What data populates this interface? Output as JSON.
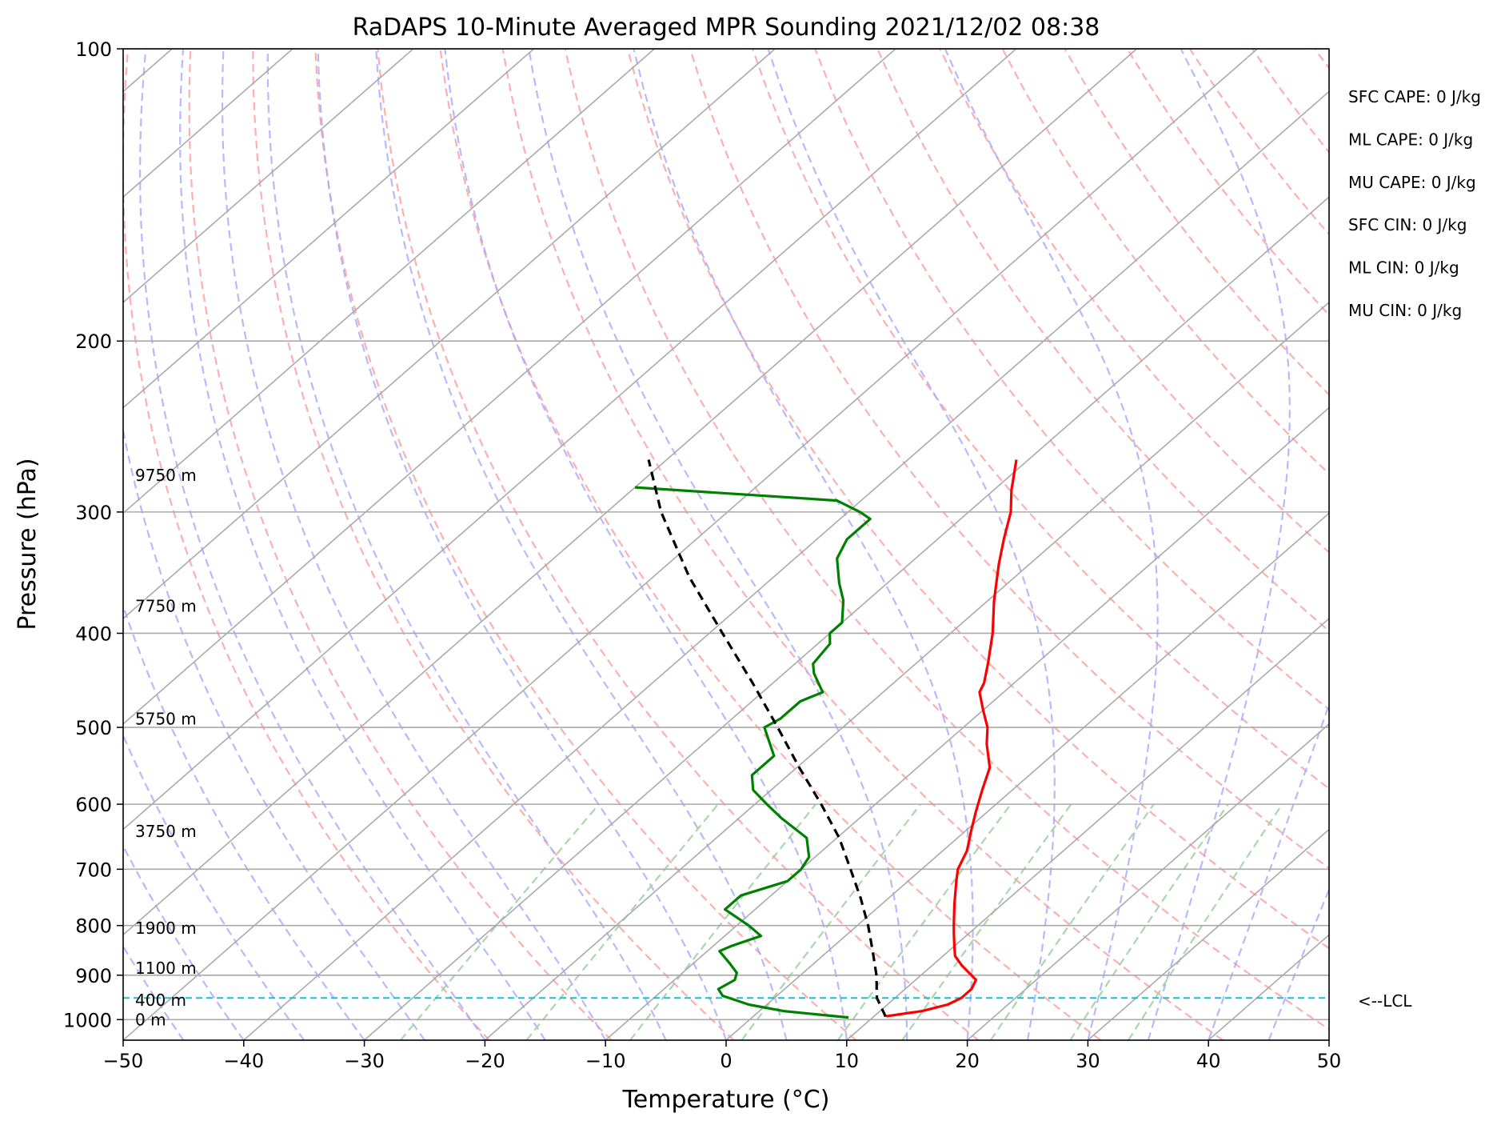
{
  "chart_data": {
    "type": "line",
    "title": "RaDAPS 10-Minute Averaged MPR Sounding 2021/12/02 08:38",
    "xlabel": "Temperature (°C)",
    "ylabel": "Pressure (hPa)",
    "xlim": [
      -50,
      50
    ],
    "ylim": [
      1050,
      100
    ],
    "y_scale": "log",
    "skew": "skew-T",
    "grid": true,
    "x_ticks": [
      "−50",
      "−40",
      "−30",
      "−20",
      "−10",
      "0",
      "10",
      "20",
      "30",
      "40",
      "50"
    ],
    "x_tick_values": [
      -50,
      -40,
      -30,
      -20,
      -10,
      0,
      10,
      20,
      30,
      40,
      50
    ],
    "y_ticks": [
      "100",
      "200",
      "300",
      "400",
      "500",
      "600",
      "700",
      "800",
      "900",
      "1000"
    ],
    "y_tick_values": [
      100,
      200,
      300,
      400,
      500,
      600,
      700,
      800,
      900,
      1000
    ],
    "series": [
      {
        "role": "temperature",
        "color": "#ff0000",
        "points": [
          {
            "p": 992,
            "t": 11.0
          },
          {
            "p": 980,
            "t": 13.5
          },
          {
            "p": 965,
            "t": 15.0
          },
          {
            "p": 950,
            "t": 15.5
          },
          {
            "p": 930,
            "t": 15.5
          },
          {
            "p": 910,
            "t": 15.0
          },
          {
            "p": 880,
            "t": 12.5
          },
          {
            "p": 860,
            "t": 11.0
          },
          {
            "p": 840,
            "t": 10.0
          },
          {
            "p": 820,
            "t": 9.0
          },
          {
            "p": 800,
            "t": 8.0
          },
          {
            "p": 760,
            "t": 6.0
          },
          {
            "p": 720,
            "t": 4.0
          },
          {
            "p": 700,
            "t": 3.0
          },
          {
            "p": 670,
            "t": 2.0
          },
          {
            "p": 640,
            "t": 0.5
          },
          {
            "p": 610,
            "t": -1.0
          },
          {
            "p": 580,
            "t": -2.5
          },
          {
            "p": 550,
            "t": -4.0
          },
          {
            "p": 520,
            "t": -6.5
          },
          {
            "p": 500,
            "t": -8.0
          },
          {
            "p": 480,
            "t": -10.0
          },
          {
            "p": 460,
            "t": -12.0
          },
          {
            "p": 450,
            "t": -12.5
          },
          {
            "p": 430,
            "t": -14.0
          },
          {
            "p": 400,
            "t": -16.5
          },
          {
            "p": 370,
            "t": -19.5
          },
          {
            "p": 340,
            "t": -22.5
          },
          {
            "p": 320,
            "t": -24.5
          },
          {
            "p": 300,
            "t": -26.5
          },
          {
            "p": 285,
            "t": -28.5
          },
          {
            "p": 265,
            "t": -31.0
          }
        ]
      },
      {
        "role": "dewpoint",
        "color": "#008000",
        "points": [
          {
            "p": 995,
            "t": 8.0
          },
          {
            "p": 990,
            "t": 6.0
          },
          {
            "p": 980,
            "t": 2.0
          },
          {
            "p": 965,
            "t": -1.5
          },
          {
            "p": 955,
            "t": -3.0
          },
          {
            "p": 945,
            "t": -4.5
          },
          {
            "p": 930,
            "t": -5.5
          },
          {
            "p": 910,
            "t": -5.0
          },
          {
            "p": 895,
            "t": -5.5
          },
          {
            "p": 875,
            "t": -7.0
          },
          {
            "p": 850,
            "t": -9.0
          },
          {
            "p": 840,
            "t": -8.5
          },
          {
            "p": 820,
            "t": -7.0
          },
          {
            "p": 800,
            "t": -9.0
          },
          {
            "p": 770,
            "t": -12.5
          },
          {
            "p": 745,
            "t": -12.5
          },
          {
            "p": 720,
            "t": -10.0
          },
          {
            "p": 700,
            "t": -10.0
          },
          {
            "p": 680,
            "t": -10.5
          },
          {
            "p": 650,
            "t": -12.5
          },
          {
            "p": 620,
            "t": -16.5
          },
          {
            "p": 600,
            "t": -19.0
          },
          {
            "p": 580,
            "t": -21.5
          },
          {
            "p": 560,
            "t": -23.0
          },
          {
            "p": 535,
            "t": -23.0
          },
          {
            "p": 500,
            "t": -26.5
          },
          {
            "p": 490,
            "t": -26.0
          },
          {
            "p": 470,
            "t": -26.0
          },
          {
            "p": 460,
            "t": -25.0
          },
          {
            "p": 440,
            "t": -27.5
          },
          {
            "p": 430,
            "t": -28.5
          },
          {
            "p": 410,
            "t": -29.0
          },
          {
            "p": 400,
            "t": -30.0
          },
          {
            "p": 390,
            "t": -30.0
          },
          {
            "p": 370,
            "t": -32.0
          },
          {
            "p": 355,
            "t": -34.0
          },
          {
            "p": 335,
            "t": -36.5
          },
          {
            "p": 320,
            "t": -37.5
          },
          {
            "p": 305,
            "t": -37.5
          },
          {
            "p": 300,
            "t": -39.0
          },
          {
            "p": 292,
            "t": -42.0
          },
          {
            "p": 283,
            "t": -60.0
          }
        ]
      },
      {
        "role": "parcel",
        "color": "#000000",
        "dashed": true,
        "points": [
          {
            "p": 993,
            "t": 11.0
          },
          {
            "p": 950,
            "t": 8.5
          },
          {
            "p": 900,
            "t": 6.3
          },
          {
            "p": 850,
            "t": 3.7
          },
          {
            "p": 800,
            "t": 0.9
          },
          {
            "p": 750,
            "t": -2.3
          },
          {
            "p": 700,
            "t": -5.9
          },
          {
            "p": 650,
            "t": -9.8
          },
          {
            "p": 600,
            "t": -14.5
          },
          {
            "p": 550,
            "t": -19.8
          },
          {
            "p": 500,
            "t": -25.4
          },
          {
            "p": 450,
            "t": -31.7
          },
          {
            "p": 400,
            "t": -38.9
          },
          {
            "p": 350,
            "t": -47.0
          },
          {
            "p": 300,
            "t": -55.5
          },
          {
            "p": 265,
            "t": -61.5
          }
        ]
      }
    ],
    "lcl_pressure": 950,
    "lcl_label": "<--LCL",
    "lcl_color": "#17becf",
    "height_labels": [
      {
        "p": 1000,
        "label": "0 m"
      },
      {
        "p": 955,
        "label": "400 m"
      },
      {
        "p": 885,
        "label": "1100 m"
      },
      {
        "p": 805,
        "label": "1900 m"
      },
      {
        "p": 640,
        "label": "3750 m"
      },
      {
        "p": 490,
        "label": "5750 m"
      },
      {
        "p": 375,
        "label": "7750 m"
      },
      {
        "p": 275,
        "label": "9750 m"
      }
    ],
    "stats": [
      "SFC CAPE: 0 J/kg",
      "ML CAPE: 0 J/kg",
      "MU CAPE: 0 J/kg",
      "SFC CIN: 0 J/kg",
      "ML CIN: 0 J/kg",
      "MU CIN: 0 J/kg"
    ],
    "reference_lines": {
      "isotherms": {
        "color": "#aaaaaa"
      },
      "dry_adiabats": {
        "color": "#ff9a9a",
        "dashed": true
      },
      "moist_adiabats": {
        "color": "#a6a6ff",
        "dashed": true
      },
      "mixing_ratio": {
        "color": "#9fd39f",
        "dashed": true,
        "top_pressure": 600
      }
    }
  }
}
